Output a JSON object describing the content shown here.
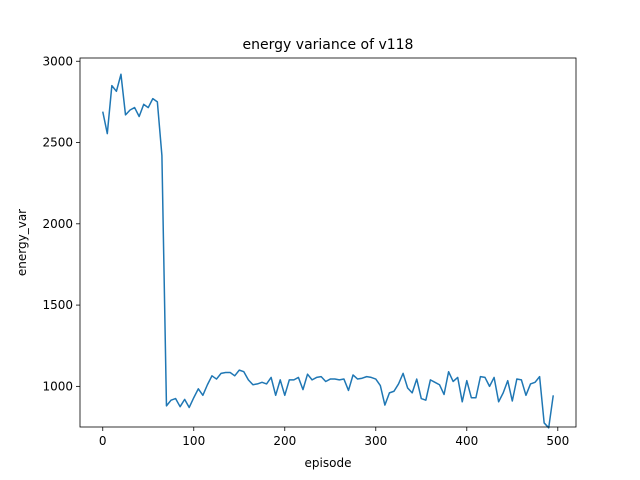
{
  "chart_data": {
    "type": "line",
    "title": "energy variance of v118",
    "xlabel": "episode",
    "ylabel": "energy_var",
    "xlim": [
      -25,
      520
    ],
    "ylim": [
      750,
      3020
    ],
    "xticks": [
      0,
      100,
      200,
      300,
      400,
      500
    ],
    "yticks": [
      1000,
      1500,
      2000,
      2500,
      3000
    ],
    "grid": false,
    "series": [
      {
        "name": "energy_var",
        "color": "#1f77b4",
        "x": [
          0,
          5,
          10,
          15,
          20,
          25,
          30,
          35,
          40,
          45,
          50,
          55,
          60,
          65,
          70,
          75,
          80,
          85,
          90,
          95,
          100,
          105,
          110,
          115,
          120,
          125,
          130,
          135,
          140,
          145,
          150,
          155,
          160,
          165,
          170,
          175,
          180,
          185,
          190,
          195,
          200,
          205,
          210,
          215,
          220,
          225,
          230,
          235,
          240,
          245,
          250,
          255,
          260,
          265,
          270,
          275,
          280,
          285,
          290,
          295,
          300,
          305,
          310,
          315,
          320,
          325,
          330,
          335,
          340,
          345,
          350,
          355,
          360,
          365,
          370,
          375,
          380,
          385,
          390,
          395,
          400,
          405,
          410,
          415,
          420,
          425,
          430,
          435,
          440,
          445,
          450,
          455,
          460,
          465,
          470,
          475,
          480,
          485,
          490,
          495
        ],
        "y": [
          2690,
          2555,
          2850,
          2815,
          2920,
          2670,
          2700,
          2715,
          2660,
          2735,
          2715,
          2770,
          2750,
          2420,
          880,
          915,
          925,
          875,
          920,
          870,
          930,
          985,
          945,
          1010,
          1065,
          1045,
          1080,
          1085,
          1085,
          1065,
          1100,
          1090,
          1040,
          1010,
          1015,
          1025,
          1015,
          1055,
          945,
          1040,
          945,
          1040,
          1040,
          1055,
          980,
          1075,
          1040,
          1055,
          1060,
          1030,
          1045,
          1045,
          1040,
          1045,
          975,
          1070,
          1045,
          1050,
          1060,
          1055,
          1045,
          1005,
          885,
          960,
          970,
          1015,
          1080,
          990,
          960,
          1045,
          925,
          915,
          1040,
          1025,
          1010,
          950,
          1090,
          1030,
          1055,
          905,
          1035,
          930,
          930,
          1060,
          1055,
          1000,
          1055,
          905,
          960,
          1035,
          910,
          1045,
          1040,
          945,
          1015,
          1025,
          1060,
          775,
          745,
          945
        ]
      }
    ]
  }
}
